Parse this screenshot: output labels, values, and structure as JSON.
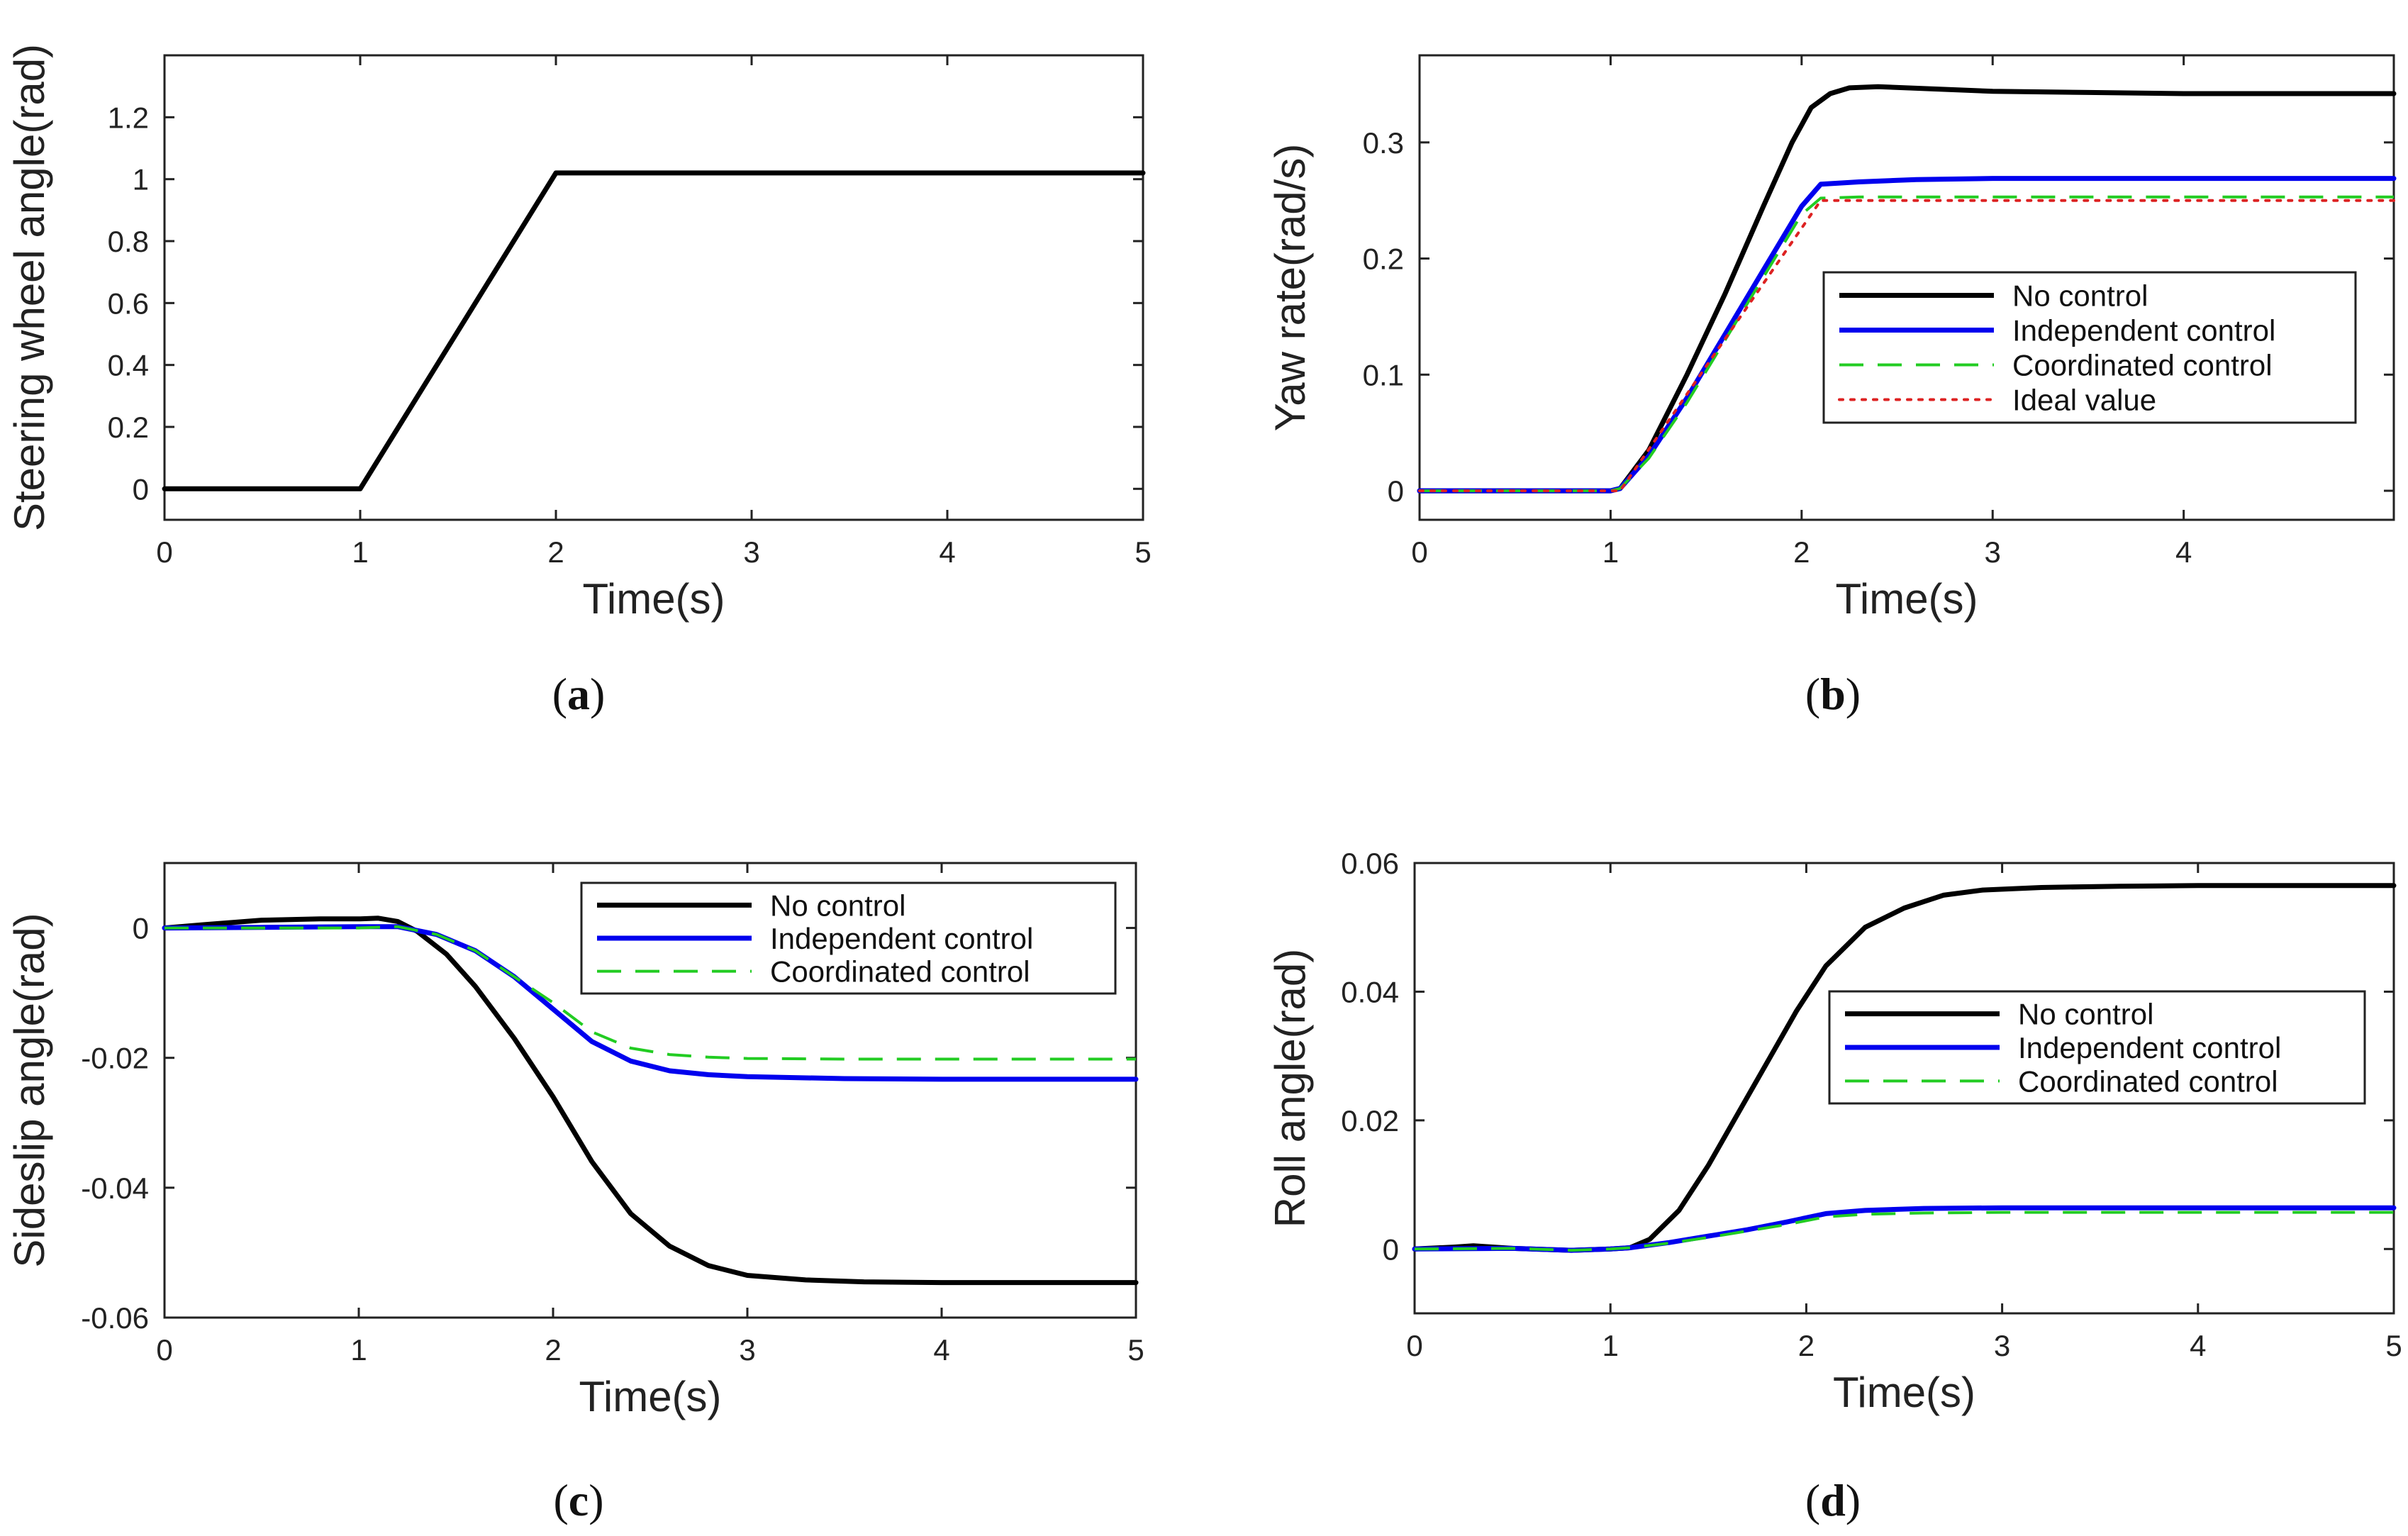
{
  "chart_data": [
    {
      "id": "a",
      "type": "line",
      "caption": {
        "pre": "(",
        "letter": "a",
        "post": ")"
      },
      "xlabel": "Time(s)",
      "ylabel": "Steering wheel angle(rad)",
      "xlim": [
        0,
        5
      ],
      "ylim": [
        -0.1,
        1.4
      ],
      "xticks": [
        0,
        1,
        2,
        3,
        4,
        5
      ],
      "yticks": [
        0,
        0.2,
        0.4,
        0.6,
        0.8,
        1,
        1.2
      ],
      "ytick_labels": [
        "0",
        "0.2",
        "0.4",
        "0.6",
        "0.8",
        "1",
        "1.2"
      ],
      "legend": null,
      "series": [
        {
          "name": "Steering wheel angle",
          "color": "#000000",
          "style": "solid",
          "x": [
            0,
            1,
            2,
            5
          ],
          "y": [
            0,
            0,
            1.02,
            1.02
          ]
        }
      ]
    },
    {
      "id": "b",
      "type": "line",
      "caption": {
        "pre": "(",
        "letter": "b",
        "post": ")"
      },
      "xlabel": "Time(s)",
      "ylabel": "Yaw rate(rad/s)",
      "xlim": [
        0,
        5.1
      ],
      "ylim": [
        -0.025,
        0.375
      ],
      "xticks": [
        0,
        1,
        2,
        3,
        4
      ],
      "yticks": [
        0,
        0.1,
        0.2,
        0.3
      ],
      "ytick_labels": [
        "0",
        "0.1",
        "0.2",
        "0.3"
      ],
      "legend": "center-right",
      "series": [
        {
          "name": "No control",
          "color": "#000000",
          "style": "solid",
          "x": [
            0,
            1,
            1.05,
            1.2,
            1.4,
            1.6,
            1.8,
            1.95,
            2.05,
            2.15,
            2.25,
            2.4,
            2.7,
            3.0,
            3.5,
            4.0,
            5.1
          ],
          "y": [
            0,
            0,
            0.002,
            0.035,
            0.1,
            0.17,
            0.245,
            0.3,
            0.33,
            0.342,
            0.347,
            0.348,
            0.346,
            0.344,
            0.343,
            0.342,
            0.342
          ]
        },
        {
          "name": "Independent control",
          "color": "#0000ee",
          "style": "solid",
          "x": [
            0,
            1,
            1.05,
            1.2,
            1.4,
            1.6,
            1.8,
            2.0,
            2.1,
            2.3,
            2.6,
            3.0,
            4.0,
            5.1
          ],
          "y": [
            0,
            0,
            0.002,
            0.03,
            0.08,
            0.135,
            0.19,
            0.245,
            0.264,
            0.266,
            0.268,
            0.269,
            0.269,
            0.269
          ]
        },
        {
          "name": "Coordinated control",
          "color": "#22cc22",
          "style": "dashed",
          "x": [
            0,
            1,
            1.05,
            1.2,
            1.4,
            1.6,
            1.8,
            2.0,
            2.1,
            2.3,
            3.0,
            5.1
          ],
          "y": [
            0,
            0,
            0.002,
            0.028,
            0.076,
            0.13,
            0.184,
            0.238,
            0.252,
            0.253,
            0.253,
            0.253
          ]
        },
        {
          "name": "Ideal value",
          "color": "#dd2222",
          "style": "dotted",
          "x": [
            0,
            1.05,
            2.1,
            5.1
          ],
          "y": [
            0,
            0,
            0.25,
            0.25
          ]
        }
      ]
    },
    {
      "id": "c",
      "type": "line",
      "caption": {
        "pre": "(",
        "letter": "c",
        "post": ")"
      },
      "xlabel": "Time(s)",
      "ylabel": "Sideslip angle(rad)",
      "xlim": [
        0,
        5
      ],
      "ylim": [
        -0.06,
        0.01
      ],
      "xticks": [
        0,
        1,
        2,
        3,
        4,
        5
      ],
      "yticks": [
        -0.06,
        -0.04,
        -0.02,
        0
      ],
      "ytick_labels": [
        "-0.06",
        "-0.04",
        "-0.02",
        "0"
      ],
      "legend": "top-right",
      "series": [
        {
          "name": "No control",
          "color": "#000000",
          "style": "solid",
          "x": [
            0,
            0.2,
            0.5,
            0.8,
            1.0,
            1.1,
            1.2,
            1.3,
            1.45,
            1.6,
            1.8,
            2.0,
            2.2,
            2.4,
            2.6,
            2.8,
            3.0,
            3.3,
            3.6,
            4.0,
            4.5,
            5.0
          ],
          "y": [
            0,
            0.0005,
            0.0012,
            0.0014,
            0.0014,
            0.0015,
            0.001,
            -0.0005,
            -0.004,
            -0.009,
            -0.017,
            -0.026,
            -0.036,
            -0.044,
            -0.049,
            -0.052,
            -0.0535,
            -0.0542,
            -0.0545,
            -0.0546,
            -0.0546,
            -0.0546
          ]
        },
        {
          "name": "Independent control",
          "color": "#0000ee",
          "style": "solid",
          "x": [
            0,
            0.5,
            1.0,
            1.2,
            1.4,
            1.6,
            1.8,
            2.0,
            2.2,
            2.4,
            2.6,
            2.8,
            3.0,
            3.5,
            4.0,
            5.0
          ],
          "y": [
            0,
            0.0001,
            0.0002,
            0.0002,
            -0.001,
            -0.0035,
            -0.0075,
            -0.0125,
            -0.0175,
            -0.0205,
            -0.022,
            -0.0226,
            -0.0229,
            -0.0232,
            -0.0233,
            -0.0233
          ]
        },
        {
          "name": "Coordinated control",
          "color": "#22cc22",
          "style": "dashed",
          "x": [
            0,
            0.5,
            1.0,
            1.2,
            1.4,
            1.6,
            1.8,
            2.0,
            2.2,
            2.4,
            2.6,
            2.8,
            3.0,
            3.5,
            4.0,
            5.0
          ],
          "y": [
            0,
            0,
            0,
            0.0002,
            -0.001,
            -0.0035,
            -0.0075,
            -0.0115,
            -0.016,
            -0.0185,
            -0.0195,
            -0.0199,
            -0.0201,
            -0.0202,
            -0.0202,
            -0.0202
          ]
        }
      ]
    },
    {
      "id": "d",
      "type": "line",
      "caption": {
        "pre": "(",
        "letter": "d",
        "post": ")"
      },
      "xlabel": "Time(s)",
      "ylabel": "Roll angle(rad)",
      "xlim": [
        0,
        5
      ],
      "ylim": [
        -0.01,
        0.06
      ],
      "xticks": [
        0,
        1,
        2,
        3,
        4,
        5
      ],
      "yticks": [
        0,
        0.02,
        0.04,
        0.06
      ],
      "ytick_labels": [
        "0",
        "0.02",
        "0.04",
        "0.06"
      ],
      "legend": "center-right",
      "series": [
        {
          "name": "No control",
          "color": "#000000",
          "style": "solid",
          "x": [
            0,
            0.2,
            0.3,
            0.5,
            0.8,
            1.0,
            1.1,
            1.2,
            1.35,
            1.5,
            1.65,
            1.8,
            1.95,
            2.1,
            2.3,
            2.5,
            2.7,
            2.9,
            3.2,
            3.6,
            4.0,
            5.0
          ],
          "y": [
            0,
            0.0003,
            0.0005,
            0.0001,
            -0.0002,
            0,
            0.0002,
            0.0015,
            0.006,
            0.013,
            0.021,
            0.029,
            0.037,
            0.044,
            0.05,
            0.053,
            0.055,
            0.0558,
            0.0562,
            0.0564,
            0.0565,
            0.0565
          ]
        },
        {
          "name": "Independent control",
          "color": "#0000ee",
          "style": "solid",
          "x": [
            0,
            0.5,
            0.8,
            1.0,
            1.1,
            1.3,
            1.5,
            1.7,
            1.9,
            2.1,
            2.3,
            2.6,
            3.0,
            4.0,
            5.0
          ],
          "y": [
            0,
            0.0001,
            -0.0002,
            0,
            0.0002,
            0.001,
            0.002,
            0.003,
            0.0042,
            0.0055,
            0.006,
            0.0063,
            0.0064,
            0.0064,
            0.0064
          ]
        },
        {
          "name": "Coordinated control",
          "color": "#22cc22",
          "style": "dashed",
          "x": [
            0,
            0.5,
            0.8,
            1.0,
            1.1,
            1.3,
            1.5,
            1.7,
            1.9,
            2.1,
            2.3,
            2.6,
            3.0,
            4.0,
            5.0
          ],
          "y": [
            0,
            0.0001,
            -0.0002,
            0,
            0.0002,
            0.0009,
            0.0018,
            0.0028,
            0.0038,
            0.005,
            0.0054,
            0.0056,
            0.0057,
            0.0057,
            0.0057
          ]
        }
      ]
    }
  ]
}
